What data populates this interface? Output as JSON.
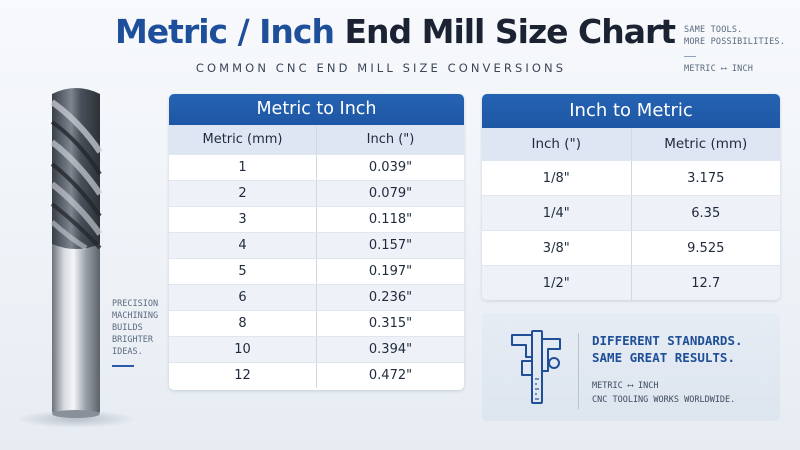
{
  "header": {
    "title_accent": "Metric / Inch",
    "title_rest": "End Mill Size Chart",
    "subtitle": "COMMON CNC END MILL SIZE CONVERSIONS"
  },
  "corner_note": {
    "line1": "SAME TOOLS.",
    "line2": "MORE POSSIBILITIES.",
    "line3": "METRIC ⟷ INCH"
  },
  "side_note": {
    "lines": [
      "PRECISION",
      "MACHINING",
      "BUILDS",
      "BRIGHTER",
      "IDEAS."
    ]
  },
  "metric_to_inch": {
    "title": "Metric to Inch",
    "columns": [
      "Metric (mm)",
      "Inch (\")"
    ],
    "rows": [
      [
        "1",
        "0.039\""
      ],
      [
        "2",
        "0.079\""
      ],
      [
        "3",
        "0.118\""
      ],
      [
        "4",
        "0.157\""
      ],
      [
        "5",
        "0.197\""
      ],
      [
        "6",
        "0.236\""
      ],
      [
        "8",
        "0.315\""
      ],
      [
        "10",
        "0.394\""
      ],
      [
        "12",
        "0.472\""
      ]
    ]
  },
  "inch_to_metric": {
    "title": "Inch to Metric",
    "columns": [
      "Inch (\")",
      "Metric (mm)"
    ],
    "rows": [
      [
        "1/8\"",
        "3.175"
      ],
      [
        "1/4\"",
        "6.35"
      ],
      [
        "3/8\"",
        "9.525"
      ],
      [
        "1/2\"",
        "12.7"
      ]
    ]
  },
  "info_card": {
    "headline1": "DIFFERENT STANDARDS.",
    "headline2": "SAME GREAT RESULTS.",
    "sub1": "METRIC ⟷ INCH",
    "sub2": "CNC TOOLING WORKS WORLDWIDE.",
    "icon": "caliper-icon"
  },
  "colors": {
    "accent_blue": "#1d4f9a",
    "table_header": "#2563b3",
    "column_header_bg": "#dde6f2"
  }
}
